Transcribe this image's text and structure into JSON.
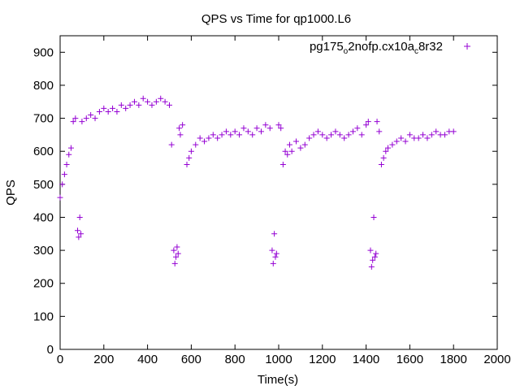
{
  "chart_data": {
    "type": "scatter",
    "title": "QPS vs Time for qp1000.L6",
    "xlabel": "Time(s)",
    "ylabel": "QPS",
    "xlim": [
      0,
      2000
    ],
    "ylim": [
      0,
      950
    ],
    "x_ticks": [
      0,
      200,
      400,
      600,
      800,
      1000,
      1200,
      1400,
      1600,
      1800,
      2000
    ],
    "y_ticks": [
      0,
      100,
      200,
      300,
      400,
      500,
      600,
      700,
      800,
      900
    ],
    "grid": false,
    "legend_position": "top-right",
    "legend": {
      "base": "pg175",
      "sub1": "o",
      "mid": "2nofp.cx10a",
      "sub2": "c",
      "tail": "8r32"
    },
    "series": [
      {
        "color": "#9400D3",
        "marker": "plus",
        "x": [
          0,
          10,
          20,
          30,
          40,
          50,
          60,
          70,
          80,
          85,
          90,
          95,
          100,
          120,
          140,
          160,
          180,
          200,
          220,
          240,
          260,
          280,
          300,
          320,
          340,
          360,
          380,
          400,
          420,
          440,
          460,
          480,
          500,
          510,
          520,
          525,
          530,
          535,
          540,
          545,
          550,
          560,
          580,
          590,
          600,
          620,
          640,
          660,
          680,
          700,
          720,
          740,
          760,
          780,
          800,
          820,
          840,
          860,
          880,
          900,
          920,
          940,
          960,
          970,
          975,
          980,
          985,
          990,
          1000,
          1010,
          1020,
          1030,
          1040,
          1050,
          1060,
          1080,
          1100,
          1120,
          1140,
          1160,
          1180,
          1200,
          1220,
          1240,
          1260,
          1280,
          1300,
          1320,
          1340,
          1360,
          1380,
          1400,
          1410,
          1420,
          1425,
          1430,
          1435,
          1440,
          1445,
          1450,
          1460,
          1470,
          1480,
          1490,
          1500,
          1520,
          1540,
          1560,
          1580,
          1600,
          1620,
          1640,
          1660,
          1680,
          1700,
          1720,
          1740,
          1760,
          1780,
          1800
        ],
        "y": [
          460,
          500,
          530,
          560,
          590,
          610,
          690,
          700,
          360,
          340,
          400,
          350,
          690,
          700,
          710,
          700,
          720,
          730,
          720,
          730,
          720,
          740,
          730,
          740,
          750,
          740,
          760,
          750,
          740,
          750,
          760,
          750,
          740,
          620,
          300,
          260,
          280,
          310,
          290,
          670,
          650,
          680,
          560,
          580,
          600,
          620,
          640,
          630,
          640,
          650,
          640,
          650,
          660,
          650,
          660,
          650,
          670,
          660,
          650,
          670,
          660,
          680,
          670,
          300,
          260,
          350,
          280,
          290,
          680,
          670,
          560,
          600,
          590,
          620,
          600,
          630,
          610,
          620,
          640,
          650,
          660,
          650,
          640,
          650,
          660,
          650,
          640,
          650,
          660,
          670,
          650,
          680,
          690,
          300,
          250,
          270,
          400,
          280,
          290,
          690,
          660,
          560,
          580,
          600,
          610,
          620,
          630,
          640,
          630,
          650,
          640,
          640,
          650,
          640,
          650,
          660,
          650,
          650,
          660,
          660
        ]
      }
    ]
  }
}
